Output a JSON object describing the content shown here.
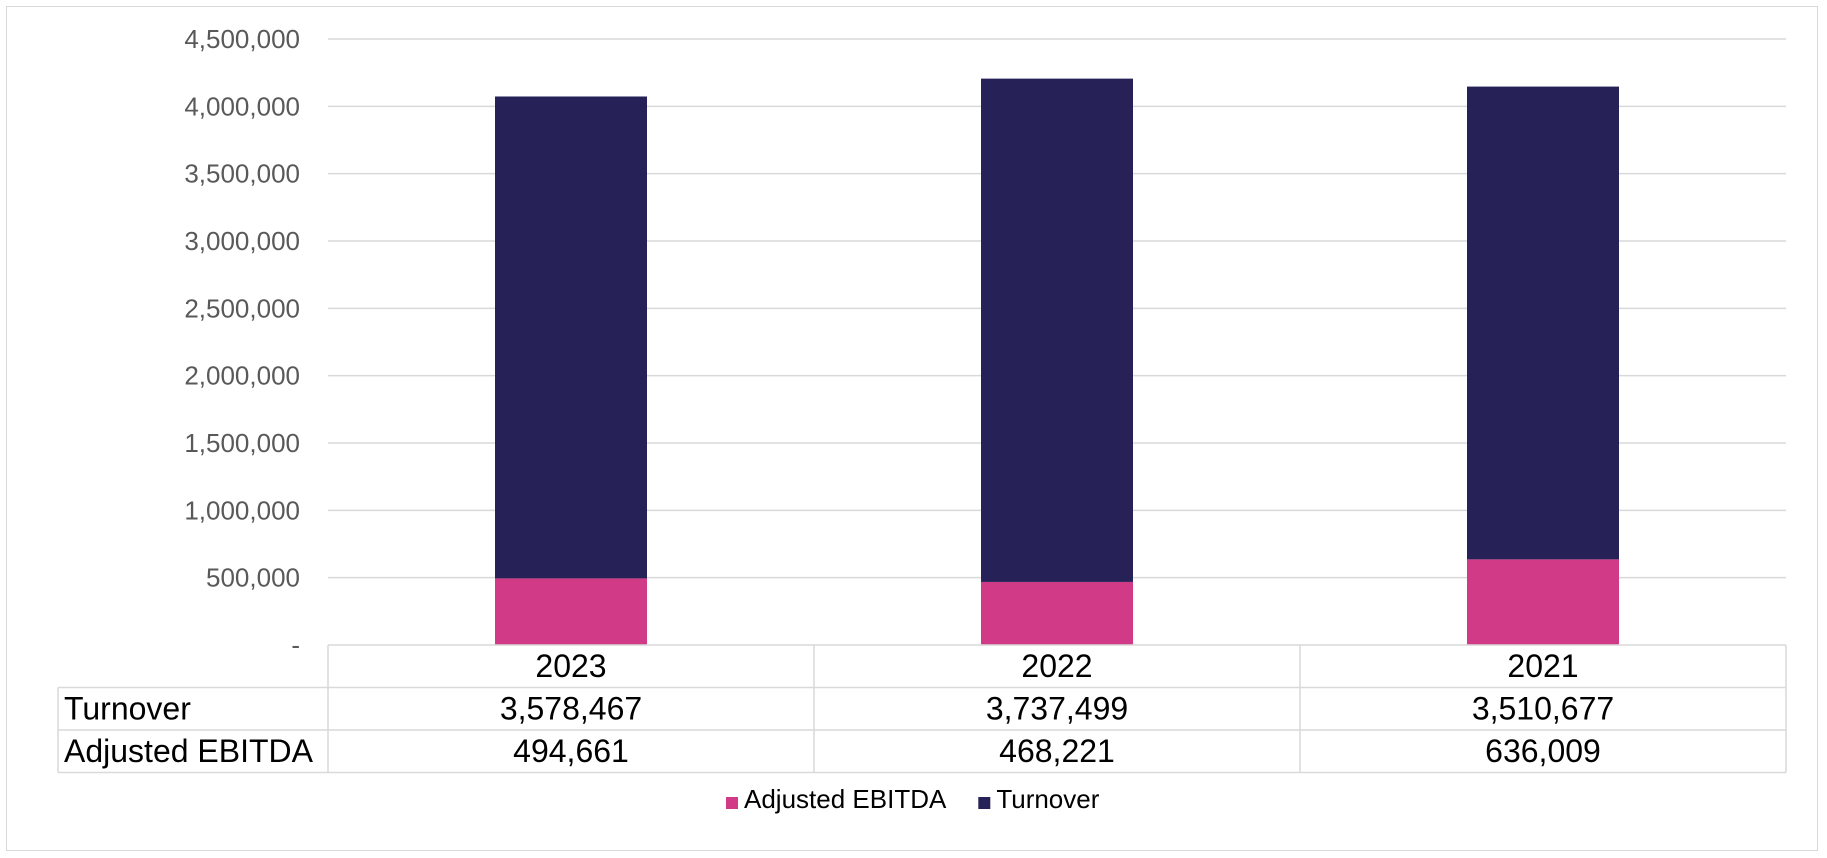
{
  "chart_data": {
    "type": "bar",
    "stacked": true,
    "categories": [
      "2023",
      "2022",
      "2021"
    ],
    "series": [
      {
        "name": "Adjusted EBITDA",
        "values": [
          494661,
          468221,
          636009
        ],
        "color": "#d03a86"
      },
      {
        "name": "Turnover",
        "values": [
          3578467,
          3737499,
          3510677
        ],
        "color": "#262257"
      }
    ],
    "table_rows": [
      {
        "label": "Turnover",
        "values": [
          "3,578,467",
          "3,737,499",
          "3,510,677"
        ]
      },
      {
        "label": "Adjusted EBITDA",
        "values": [
          "494,661",
          "468,221",
          "636,009"
        ]
      }
    ],
    "ylim": [
      0,
      4500000
    ],
    "yticks": [
      0,
      500000,
      1000000,
      1500000,
      2000000,
      2500000,
      3000000,
      3500000,
      4000000,
      4500000
    ],
    "ytick_labels": [
      "-",
      "500,000",
      "1,000,000",
      "1,500,000",
      "2,000,000",
      "2,500,000",
      "3,000,000",
      "3,500,000",
      "4,000,000",
      "4,500,000"
    ],
    "grid": true,
    "legend": {
      "position": "bottom",
      "entries": [
        "Adjusted EBITDA",
        "Turnover"
      ]
    },
    "title": "",
    "xlabel": "",
    "ylabel": ""
  }
}
